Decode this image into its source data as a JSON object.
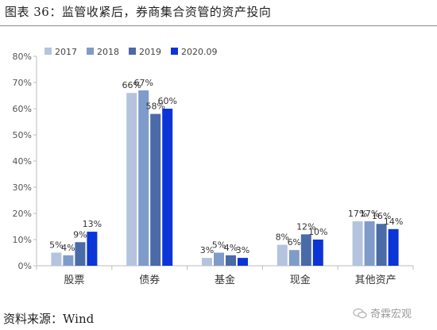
{
  "figure_title": "图表 36：监管收紧后，券商集合资管的资产投向",
  "source_note": "资料来源：Wind",
  "watermark": "奇霖宏观",
  "chart_data": {
    "type": "bar",
    "categories": [
      "股票",
      "债券",
      "基金",
      "现金",
      "其他资产"
    ],
    "series": [
      {
        "name": "2017",
        "values": [
          5,
          66,
          3,
          8,
          17
        ],
        "labels": [
          "5%",
          "66%",
          "3%",
          "8%",
          "17%"
        ],
        "color": "#b4c4de"
      },
      {
        "name": "2018",
        "values": [
          4,
          67,
          5,
          6,
          17
        ],
        "labels": [
          "4%",
          "67%",
          "5%",
          "6%",
          "17%"
        ],
        "color": "#7f9bc9"
      },
      {
        "name": "2019",
        "values": [
          9,
          58,
          4,
          12,
          16
        ],
        "labels": [
          "9%",
          "58%",
          "4%",
          "12%",
          "16%"
        ],
        "color": "#4a6aa8"
      },
      {
        "name": "2020.09",
        "values": [
          13,
          60,
          3,
          10,
          14
        ],
        "labels": [
          "13%",
          "60%",
          "3%",
          "10%",
          "14%"
        ],
        "color": "#0b35d6"
      }
    ],
    "ylim": [
      0,
      80
    ],
    "yticks": [
      "0%",
      "10%",
      "20%",
      "30%",
      "40%",
      "50%",
      "60%",
      "70%",
      "80%"
    ],
    "ytick_values": [
      0,
      10,
      20,
      30,
      40,
      50,
      60,
      70,
      80
    ],
    "legend_position": "top-left",
    "grid": false,
    "xlabel": "",
    "ylabel": ""
  }
}
